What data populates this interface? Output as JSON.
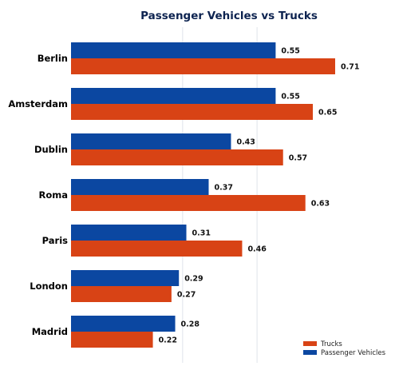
{
  "chart_data": {
    "type": "bar",
    "orientation": "horizontal",
    "title": "Passenger Vehicles vs Trucks",
    "xlabel": "",
    "ylabel": "",
    "categories": [
      "Berlin",
      "Amsterdam",
      "Dublin",
      "Roma",
      "Paris",
      "London",
      "Madrid"
    ],
    "series": [
      {
        "name": "Passenger Vehicles",
        "color": "#0b47a1",
        "values": [
          0.55,
          0.55,
          0.43,
          0.37,
          0.31,
          0.29,
          0.28
        ]
      },
      {
        "name": "Trucks",
        "color": "#d84315",
        "values": [
          0.71,
          0.65,
          0.57,
          0.63,
          0.46,
          0.27,
          0.22
        ]
      }
    ],
    "xlim": [
      0,
      0.85
    ],
    "grid": "vertical",
    "legend_position": "bottom-right",
    "data_labels": true
  }
}
